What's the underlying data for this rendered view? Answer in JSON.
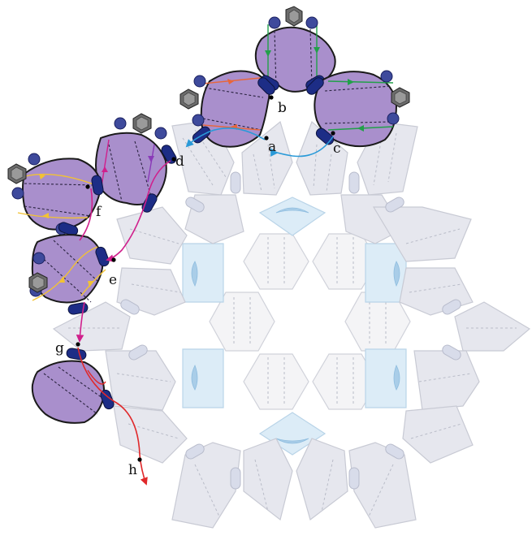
{
  "diagram": {
    "labels": [
      "a",
      "b",
      "c",
      "d",
      "e",
      "f",
      "g",
      "h"
    ],
    "colors": {
      "orange": "#e8663a",
      "green": "#22a04a",
      "blue": "#2a9ad8",
      "magenta": "#d0208c",
      "purple": "#8a3ab8",
      "yellow": "#f2c233",
      "red": "#e0282a",
      "blob": "#a98fcc",
      "dark_pill": "#1d2d86",
      "tile": "#e6e7ee",
      "light_blue_tile": "#dcecf7"
    }
  }
}
